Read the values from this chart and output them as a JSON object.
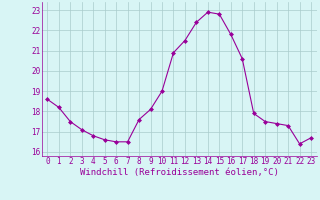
{
  "x": [
    0,
    1,
    2,
    3,
    4,
    5,
    6,
    7,
    8,
    9,
    10,
    11,
    12,
    13,
    14,
    15,
    16,
    17,
    18,
    19,
    20,
    21,
    22,
    23
  ],
  "y": [
    18.6,
    18.2,
    17.5,
    17.1,
    16.8,
    16.6,
    16.5,
    16.5,
    17.6,
    18.1,
    19.0,
    20.9,
    21.5,
    22.4,
    22.9,
    22.8,
    21.8,
    20.6,
    17.9,
    17.5,
    17.4,
    17.3,
    16.4,
    16.7
  ],
  "line_color": "#990099",
  "marker": "D",
  "marker_size": 2.0,
  "bg_color": "#d8f5f5",
  "grid_color": "#aacccc",
  "xlabel": "Windchill (Refroidissement éolien,°C)",
  "xlabel_color": "#990099",
  "xticks": [
    0,
    1,
    2,
    3,
    4,
    5,
    6,
    7,
    8,
    9,
    10,
    11,
    12,
    13,
    14,
    15,
    16,
    17,
    18,
    19,
    20,
    21,
    22,
    23
  ],
  "yticks": [
    16,
    17,
    18,
    19,
    20,
    21,
    22,
    23
  ],
  "ylim": [
    15.8,
    23.4
  ],
  "xlim": [
    -0.5,
    23.5
  ],
  "tick_color": "#990099",
  "tick_fontsize": 5.5,
  "xlabel_fontsize": 6.5
}
